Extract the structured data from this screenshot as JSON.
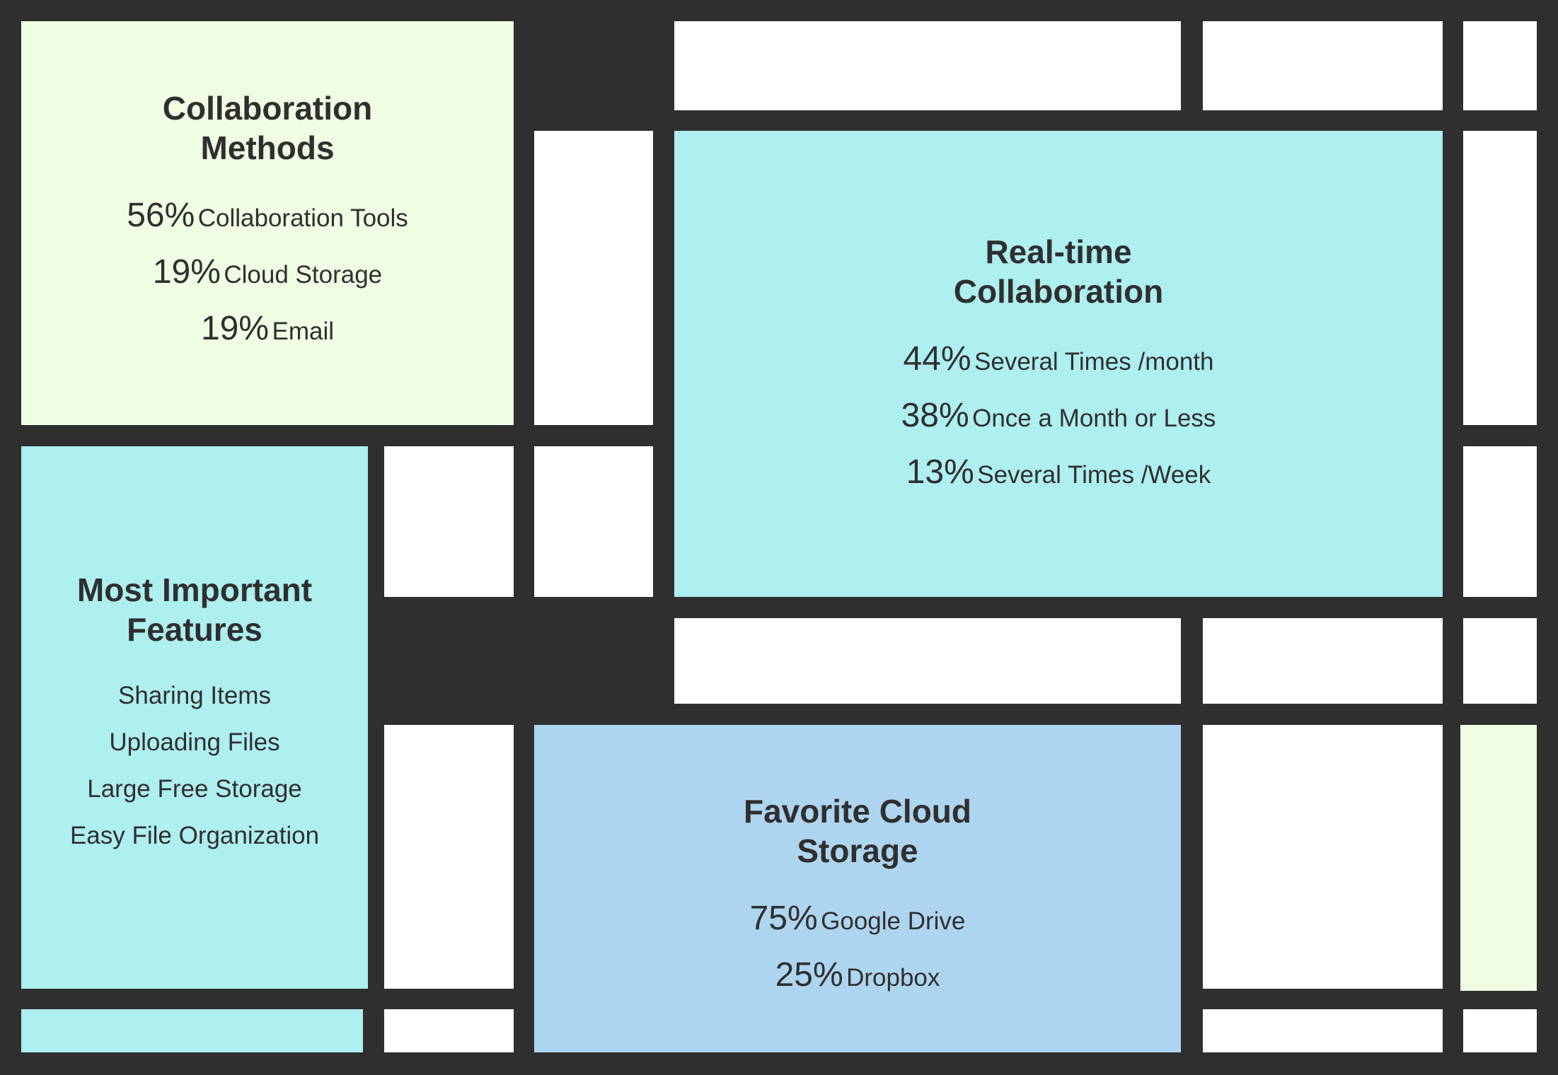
{
  "colors": {
    "background": "#2f2f2f",
    "white": "#ffffff",
    "lime": "#effee3",
    "cyan": "#aeeff0",
    "blue": "#aed5f0",
    "text": "#2f2f2f"
  },
  "collaboration_methods": {
    "title": "Collaboration\nMethods",
    "items": [
      {
        "percent": "56%",
        "label": "Collaboration Tools"
      },
      {
        "percent": "19%",
        "label": "Cloud Storage"
      },
      {
        "percent": "19%",
        "label": "Email"
      }
    ]
  },
  "realtime_collaboration": {
    "title": "Real-time\nCollaboration",
    "items": [
      {
        "percent": "44%",
        "label": "Several Times /month"
      },
      {
        "percent": "38%",
        "label": "Once a Month or Less"
      },
      {
        "percent": "13%",
        "label": "Several Times /Week"
      }
    ]
  },
  "most_important_features": {
    "title": "Most Important\nFeatures",
    "items": [
      "Sharing Items",
      "Uploading Files",
      "Large Free Storage",
      "Easy File Organization"
    ]
  },
  "favorite_cloud_storage": {
    "title": "Favorite Cloud\nStorage",
    "items": [
      {
        "percent": "75%",
        "label": "Google Drive"
      },
      {
        "percent": "25%",
        "label": "Dropbox"
      }
    ]
  }
}
